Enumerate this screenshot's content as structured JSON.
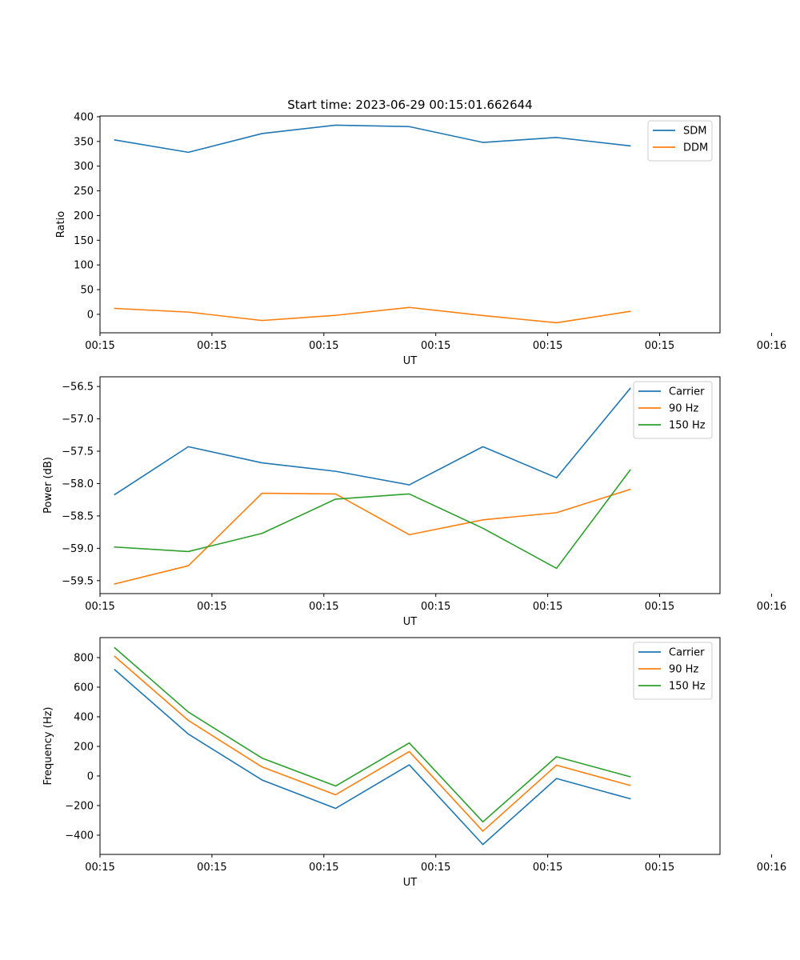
{
  "figure_title": "Start time: 2023-06-29 00:15:01.662644",
  "colors": {
    "c0": "#1f77b4",
    "c1": "#ff7f0e",
    "c2": "#2ca02c"
  },
  "chart_data": [
    {
      "type": "line",
      "xlabel": "UT",
      "ylabel": "Ratio",
      "x": [
        1,
        2,
        3,
        4,
        5,
        6,
        7,
        8
      ],
      "xlim": [
        0.8,
        9.22
      ],
      "xtick_values": [
        0.8,
        2.32,
        3.84,
        5.36,
        6.88,
        8.4,
        9.92
      ],
      "xtick_labels": [
        "00:15",
        "00:15",
        "00:15",
        "00:15",
        "00:15",
        "00:15",
        "00:16"
      ],
      "ylim": [
        -37.4,
        401.5
      ],
      "yticks": [
        0,
        50,
        100,
        150,
        200,
        250,
        300,
        350,
        400
      ],
      "legend_position": "top-right",
      "series": [
        {
          "name": "SDM",
          "color": "c0",
          "values": [
            353,
            328,
            366,
            383,
            380,
            348,
            358,
            341
          ]
        },
        {
          "name": "DDM",
          "color": "c1",
          "values": [
            12,
            4.5,
            -12.5,
            -2,
            14,
            -2.5,
            -17,
            6
          ]
        }
      ]
    },
    {
      "type": "line",
      "xlabel": "UT",
      "ylabel": "Power (dB)",
      "x": [
        1,
        2,
        3,
        4,
        5,
        6,
        7,
        8
      ],
      "xlim": [
        0.8,
        9.22
      ],
      "xtick_values": [
        0.8,
        2.32,
        3.84,
        5.36,
        6.88,
        8.4,
        9.92
      ],
      "xtick_labels": [
        "00:15",
        "00:15",
        "00:15",
        "00:15",
        "00:15",
        "00:15",
        "00:16"
      ],
      "ylim": [
        -59.7,
        -56.35
      ],
      "yticks": [
        -59.5,
        -59.0,
        -58.5,
        -58.0,
        -57.5,
        -57.0,
        -56.5
      ],
      "ytick_labels": [
        "−59.5",
        "−59.0",
        "−58.5",
        "−58.0",
        "−57.5",
        "−57.0",
        "−56.5"
      ],
      "legend_position": "top-right",
      "series": [
        {
          "name": "Carrier",
          "color": "c0",
          "values": [
            -58.17,
            -57.43,
            -57.68,
            -57.81,
            -58.02,
            -57.43,
            -57.91,
            -56.53
          ]
        },
        {
          "name": "90 Hz",
          "color": "c1",
          "values": [
            -59.55,
            -59.27,
            -58.15,
            -58.16,
            -58.79,
            -58.56,
            -58.45,
            -58.09
          ]
        },
        {
          "name": "150 Hz",
          "color": "c2",
          "values": [
            -58.98,
            -59.05,
            -58.77,
            -58.24,
            -58.16,
            -58.69,
            -59.31,
            -57.79
          ]
        }
      ]
    },
    {
      "type": "line",
      "xlabel": "UT",
      "ylabel": "Frequency (Hz)",
      "x": [
        1,
        2,
        3,
        4,
        5,
        6,
        7,
        8
      ],
      "xlim": [
        0.8,
        9.22
      ],
      "xtick_values": [
        0.8,
        2.32,
        3.84,
        5.36,
        6.88,
        8.4,
        9.92
      ],
      "xtick_labels": [
        "00:15",
        "00:15",
        "00:15",
        "00:15",
        "00:15",
        "00:15",
        "00:16"
      ],
      "ylim": [
        -530,
        935
      ],
      "yticks": [
        -400,
        -200,
        0,
        200,
        400,
        600,
        800
      ],
      "ytick_labels": [
        "−400",
        "−200",
        "0",
        "200",
        "400",
        "600",
        "800"
      ],
      "legend_position": "top-right",
      "series": [
        {
          "name": "Carrier",
          "color": "c0",
          "values": [
            718,
            283,
            -27,
            -219,
            75,
            -463,
            -17,
            -154
          ]
        },
        {
          "name": "90 Hz",
          "color": "c1",
          "values": [
            808,
            375,
            61,
            -127,
            165,
            -373,
            73,
            -64
          ]
        },
        {
          "name": "150 Hz",
          "color": "c2",
          "values": [
            866,
            432,
            121,
            -68,
            223,
            -310,
            130,
            -5
          ]
        }
      ]
    }
  ]
}
